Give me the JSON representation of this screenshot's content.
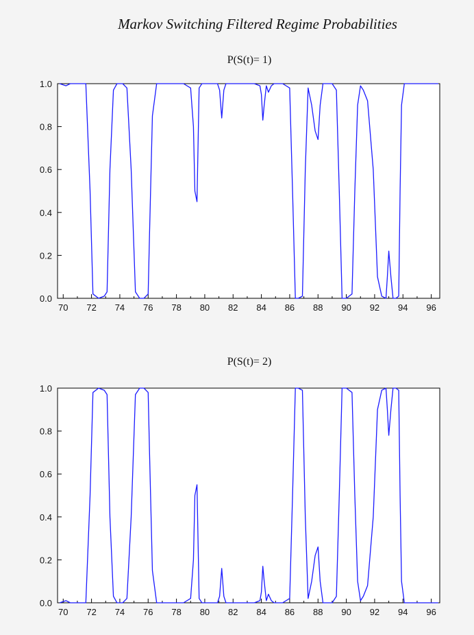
{
  "chart_title": "Markov Switching Filtered Regime Probabilities",
  "chart_data": [
    {
      "type": "line",
      "title": "P(S(t)= 1)",
      "xlabel": "",
      "ylabel": "",
      "xlim": [
        1969.6,
        1996.6
      ],
      "ylim": [
        0.0,
        1.0
      ],
      "x_ticks": [
        "70",
        "72",
        "74",
        "76",
        "78",
        "80",
        "82",
        "84",
        "86",
        "88",
        "90",
        "92",
        "94",
        "96"
      ],
      "y_ticks": [
        "0.0",
        "0.2",
        "0.4",
        "0.6",
        "0.8",
        "1.0"
      ],
      "grid": false,
      "line_color": "#1a1aff",
      "series": [
        {
          "x": [
            1969.75,
            1970.2,
            1970.5,
            1971.0,
            1971.4,
            1971.6,
            1971.9,
            1972.1,
            1972.5,
            1972.9,
            1973.1,
            1973.3,
            1973.55,
            1973.8,
            1974.2,
            1974.5,
            1974.8,
            1975.1,
            1975.4,
            1975.7,
            1976.0,
            1976.1,
            1976.3,
            1976.6,
            1977.0,
            1977.5,
            1978.0,
            1978.5,
            1979.0,
            1979.2,
            1979.3,
            1979.45,
            1979.6,
            1979.8,
            1980.0,
            1980.5,
            1980.9,
            1981.05,
            1981.2,
            1981.35,
            1981.5,
            1982.0,
            1982.5,
            1983.0,
            1983.5,
            1983.9,
            1984.0,
            1984.1,
            1984.2,
            1984.35,
            1984.5,
            1984.7,
            1984.9,
            1985.1,
            1985.5,
            1986.0,
            1986.2,
            1986.4,
            1986.6,
            1986.9,
            1987.1,
            1987.3,
            1987.55,
            1987.8,
            1988.0,
            1988.15,
            1988.35,
            1988.6,
            1989.0,
            1989.3,
            1989.5,
            1989.7,
            1990.0,
            1990.4,
            1990.6,
            1990.8,
            1991.0,
            1991.2,
            1991.5,
            1991.9,
            1992.2,
            1992.5,
            1992.8,
            1992.9,
            1993.0,
            1993.15,
            1993.3,
            1993.5,
            1993.7,
            1993.8,
            1993.9,
            1994.1,
            1994.4,
            1994.7,
            1995.0,
            1995.5,
            1996.0,
            1996.5
          ],
          "values": [
            1.0,
            0.99,
            1.0,
            1.0,
            1.0,
            1.0,
            0.5,
            0.02,
            0.0,
            0.01,
            0.03,
            0.6,
            0.97,
            1.0,
            1.0,
            0.98,
            0.6,
            0.03,
            0.0,
            0.0,
            0.02,
            0.3,
            0.85,
            1.0,
            1.0,
            1.0,
            1.0,
            1.0,
            0.98,
            0.8,
            0.5,
            0.45,
            0.98,
            1.0,
            1.0,
            1.0,
            1.0,
            0.97,
            0.84,
            0.97,
            1.0,
            1.0,
            1.0,
            1.0,
            1.0,
            0.99,
            0.95,
            0.83,
            0.9,
            0.99,
            0.96,
            0.99,
            1.0,
            1.0,
            1.0,
            0.98,
            0.5,
            0.0,
            0.0,
            0.01,
            0.6,
            0.98,
            0.9,
            0.78,
            0.74,
            0.9,
            1.0,
            1.0,
            1.0,
            0.97,
            0.5,
            0.0,
            0.0,
            0.02,
            0.5,
            0.9,
            0.99,
            0.97,
            0.92,
            0.6,
            0.1,
            0.01,
            0.0,
            0.1,
            0.22,
            0.1,
            0.0,
            0.0,
            0.01,
            0.5,
            0.9,
            1.0,
            1.0,
            1.0,
            1.0,
            1.0,
            1.0,
            1.0
          ]
        }
      ]
    },
    {
      "type": "line",
      "title": "P(S(t)= 2)",
      "xlabel": "",
      "ylabel": "",
      "xlim": [
        1969.6,
        1996.6
      ],
      "ylim": [
        0.0,
        1.0
      ],
      "x_ticks": [
        "70",
        "72",
        "74",
        "76",
        "78",
        "80",
        "82",
        "84",
        "86",
        "88",
        "90",
        "92",
        "94",
        "96"
      ],
      "y_ticks": [
        "0.0",
        "0.2",
        "0.4",
        "0.6",
        "0.8",
        "1.0"
      ],
      "grid": false,
      "line_color": "#1a1aff",
      "series": [
        {
          "x": [
            1969.75,
            1970.2,
            1970.5,
            1971.0,
            1971.4,
            1971.6,
            1971.9,
            1972.1,
            1972.5,
            1972.9,
            1973.1,
            1973.3,
            1973.55,
            1973.8,
            1974.2,
            1974.5,
            1974.8,
            1975.1,
            1975.4,
            1975.7,
            1976.0,
            1976.1,
            1976.3,
            1976.6,
            1977.0,
            1977.5,
            1978.0,
            1978.5,
            1979.0,
            1979.2,
            1979.3,
            1979.45,
            1979.6,
            1979.8,
            1980.0,
            1980.5,
            1980.9,
            1981.05,
            1981.2,
            1981.35,
            1981.5,
            1982.0,
            1982.5,
            1983.0,
            1983.5,
            1983.9,
            1984.0,
            1984.1,
            1984.2,
            1984.35,
            1984.5,
            1984.7,
            1984.9,
            1985.1,
            1985.5,
            1986.0,
            1986.2,
            1986.4,
            1986.6,
            1986.9,
            1987.1,
            1987.3,
            1987.55,
            1987.8,
            1988.0,
            1988.15,
            1988.35,
            1988.6,
            1989.0,
            1989.3,
            1989.5,
            1989.7,
            1990.0,
            1990.4,
            1990.6,
            1990.8,
            1991.0,
            1991.2,
            1991.5,
            1991.9,
            1992.2,
            1992.5,
            1992.8,
            1992.9,
            1993.0,
            1993.15,
            1993.3,
            1993.5,
            1993.7,
            1993.8,
            1993.9,
            1994.1,
            1994.4,
            1994.7,
            1995.0,
            1995.5,
            1996.0,
            1996.5
          ],
          "values": [
            0.0,
            0.01,
            0.0,
            0.0,
            0.0,
            0.0,
            0.5,
            0.98,
            1.0,
            0.99,
            0.97,
            0.4,
            0.03,
            0.0,
            0.0,
            0.02,
            0.4,
            0.97,
            1.0,
            1.0,
            0.98,
            0.7,
            0.15,
            0.0,
            0.0,
            0.0,
            0.0,
            0.0,
            0.02,
            0.2,
            0.5,
            0.55,
            0.02,
            0.0,
            0.0,
            0.0,
            0.0,
            0.03,
            0.16,
            0.03,
            0.0,
            0.0,
            0.0,
            0.0,
            0.0,
            0.01,
            0.05,
            0.17,
            0.1,
            0.01,
            0.04,
            0.01,
            0.0,
            0.0,
            0.0,
            0.02,
            0.5,
            1.0,
            1.0,
            0.99,
            0.4,
            0.02,
            0.1,
            0.22,
            0.26,
            0.1,
            0.0,
            0.0,
            0.0,
            0.03,
            0.5,
            1.0,
            1.0,
            0.98,
            0.5,
            0.1,
            0.01,
            0.03,
            0.08,
            0.4,
            0.9,
            0.99,
            1.0,
            0.9,
            0.78,
            0.9,
            1.0,
            1.0,
            0.99,
            0.5,
            0.1,
            0.0,
            0.0,
            0.0,
            0.0,
            0.0,
            0.0,
            0.0
          ]
        }
      ]
    }
  ]
}
